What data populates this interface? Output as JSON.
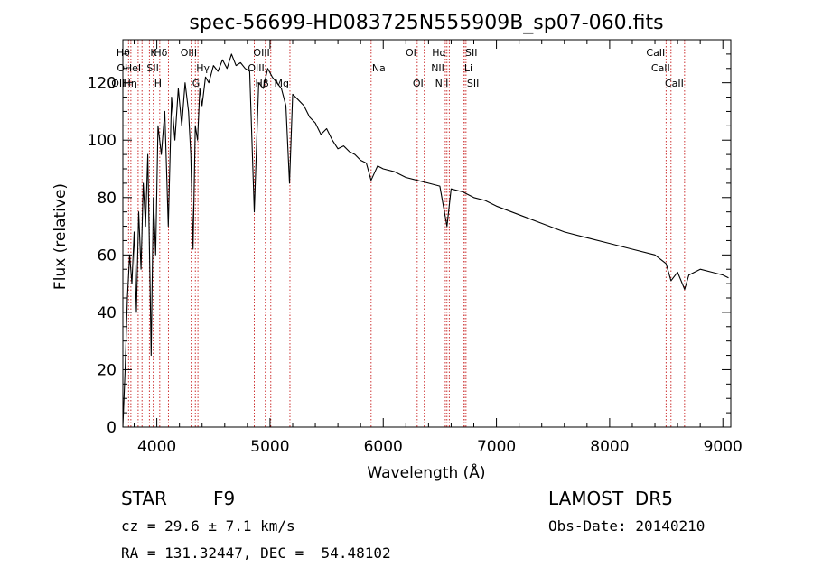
{
  "header": {
    "title": "spec-56699-HD083725N555909B_sp07-060.fits"
  },
  "info": {
    "object_class": "STAR",
    "subclass": "F9",
    "survey": "LAMOST  DR5",
    "redshift": "cz = 29.6 ± 7.1 km/s",
    "obs_date": "Obs-Date: 20140210",
    "coords": "RA = 131.32447, DEC =  54.48102"
  },
  "colors": {
    "line": "#000000",
    "marker": "#c00000",
    "axis": "#000000"
  },
  "chart_data": {
    "type": "line",
    "title": "spec-56699-HD083725N555909B_sp07-060.fits",
    "xlabel": "Wavelength (Å)",
    "ylabel": "Flux (relative)",
    "xlim": [
      3700,
      9070
    ],
    "ylim": [
      0,
      135
    ],
    "xticks": [
      4000,
      5000,
      6000,
      7000,
      8000,
      9000
    ],
    "yticks": [
      0,
      20,
      40,
      60,
      80,
      100,
      120
    ],
    "grid": false,
    "legend": "none",
    "series": [
      {
        "x": [
          3700,
          3720,
          3740,
          3760,
          3780,
          3800,
          3820,
          3840,
          3860,
          3880,
          3900,
          3920,
          3940,
          3950,
          3970,
          3990,
          4010,
          4040,
          4070,
          4101,
          4130,
          4160,
          4190,
          4220,
          4250,
          4280,
          4300,
          4320,
          4340,
          4360,
          4380,
          4400,
          4430,
          4460,
          4500,
          4540,
          4580,
          4620,
          4660,
          4700,
          4740,
          4780,
          4820,
          4861,
          4900,
          4940,
          4980,
          5020,
          5060,
          5100,
          5140,
          5172,
          5200,
          5250,
          5300,
          5350,
          5400,
          5450,
          5500,
          5550,
          5600,
          5650,
          5700,
          5750,
          5800,
          5850,
          5893,
          5950,
          6000,
          6100,
          6200,
          6300,
          6400,
          6500,
          6563,
          6600,
          6700,
          6800,
          6900,
          7000,
          7200,
          7400,
          7600,
          7800,
          8000,
          8200,
          8400,
          8498,
          8542,
          8600,
          8662,
          8700,
          8800,
          8900,
          9000,
          9050
        ],
        "y": [
          0,
          20,
          45,
          60,
          50,
          68,
          40,
          75,
          55,
          85,
          70,
          95,
          50,
          25,
          80,
          60,
          105,
          95,
          110,
          70,
          115,
          100,
          118,
          105,
          120,
          110,
          95,
          62,
          105,
          100,
          118,
          112,
          122,
          120,
          126,
          124,
          128,
          125,
          130,
          126,
          127,
          125,
          124,
          75,
          120,
          118,
          125,
          122,
          120,
          118,
          112,
          85,
          116,
          114,
          112,
          108,
          106,
          102,
          104,
          100,
          97,
          98,
          96,
          95,
          93,
          92,
          86,
          91,
          90,
          89,
          87,
          86,
          85,
          84,
          70,
          83,
          82,
          80,
          79,
          77,
          74,
          71,
          68,
          66,
          64,
          62,
          60,
          57,
          51,
          54,
          48,
          53,
          55,
          54,
          53,
          52
        ]
      }
    ],
    "lines": [
      {
        "x": 3727,
        "label": "OII",
        "row": 3,
        "side": "left"
      },
      {
        "x": 3750,
        "label": "OI",
        "row": 2,
        "side": "left"
      },
      {
        "x": 3771,
        "label": "Hθ",
        "row": 1,
        "side": "left"
      },
      {
        "x": 3835,
        "label": "Hη",
        "row": 3,
        "side": "left"
      },
      {
        "x": 3869,
        "label": "HeI",
        "row": 2,
        "side": "left"
      },
      {
        "x": 3934,
        "label": "K",
        "row": 1,
        "side": "right"
      },
      {
        "x": 3969,
        "label": "H",
        "row": 3,
        "side": "right"
      },
      {
        "x": 4026,
        "label": "SII",
        "row": 2,
        "side": "left"
      },
      {
        "x": 4102,
        "label": "Hδ",
        "row": 1,
        "side": "left"
      },
      {
        "x": 4304,
        "label": "G",
        "row": 3,
        "side": "right"
      },
      {
        "x": 4340,
        "label": "Hγ",
        "row": 2,
        "side": "right"
      },
      {
        "x": 4363,
        "label": "OIII",
        "row": 1,
        "side": "left"
      },
      {
        "x": 4861,
        "label": "Hβ",
        "row": 3,
        "side": "right"
      },
      {
        "x": 4959,
        "label": "OIII",
        "row": 2,
        "side": "left"
      },
      {
        "x": 5007,
        "label": "OIII",
        "row": 1,
        "side": "left"
      },
      {
        "x": 5176,
        "label": "Mg",
        "row": 3,
        "side": "left"
      },
      {
        "x": 5893,
        "label": "Na",
        "row": 2,
        "side": "right"
      },
      {
        "x": 6300,
        "label": "OI",
        "row": 1,
        "side": "left"
      },
      {
        "x": 6363,
        "label": "OI",
        "row": 3,
        "side": "left"
      },
      {
        "x": 6548,
        "label": "NII",
        "row": 2,
        "side": "left"
      },
      {
        "x": 6563,
        "label": "Hα",
        "row": 1,
        "side": "left"
      },
      {
        "x": 6583,
        "label": "NII",
        "row": 3,
        "side": "left"
      },
      {
        "x": 6707,
        "label": "Li",
        "row": 2,
        "side": "right"
      },
      {
        "x": 6716,
        "label": "SII",
        "row": 1,
        "side": "right"
      },
      {
        "x": 6731,
        "label": "SII",
        "row": 3,
        "side": "right"
      },
      {
        "x": 8498,
        "label": "CaII",
        "row": 1,
        "side": "left"
      },
      {
        "x": 8542,
        "label": "CaII",
        "row": 2,
        "side": "left"
      },
      {
        "x": 8662,
        "label": "CaII",
        "row": 3,
        "side": "left"
      }
    ]
  }
}
